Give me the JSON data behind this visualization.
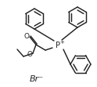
{
  "bg_color": "#ffffff",
  "line_color": "#222222",
  "line_width": 1.05,
  "figsize": [
    1.24,
    1.11
  ],
  "dpi": 100,
  "label_Br": "Br⁻",
  "label_P": "P",
  "label_plus": "+",
  "label_O_carbonyl": "O",
  "label_O_ester": "O"
}
